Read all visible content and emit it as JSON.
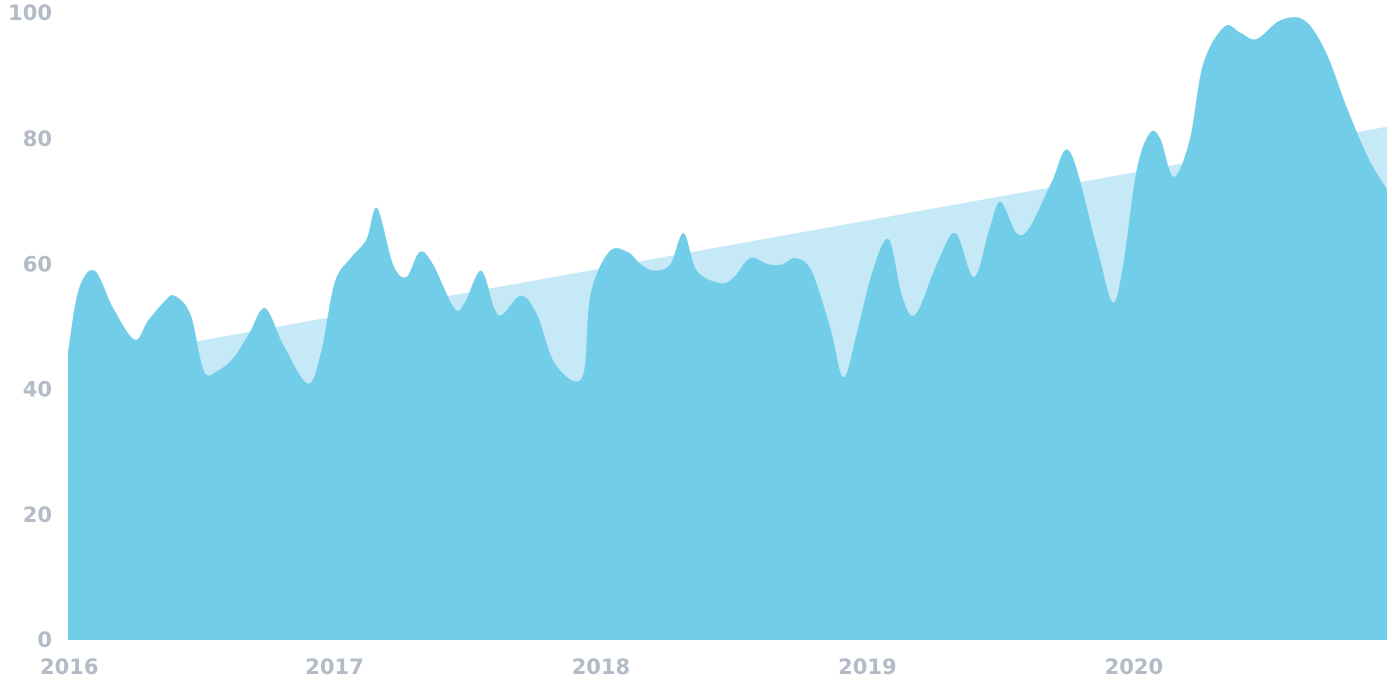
{
  "chart_data": {
    "type": "area",
    "title": "",
    "xlabel": "",
    "ylabel": "",
    "xlim": [
      2016,
      2020.95
    ],
    "ylim": [
      0,
      100
    ],
    "xticks": [
      {
        "value": 2016,
        "label": "2016"
      },
      {
        "value": 2017,
        "label": "2017"
      },
      {
        "value": 2018,
        "label": "2018"
      },
      {
        "value": 2019,
        "label": "2019"
      },
      {
        "value": 2020,
        "label": "2020"
      }
    ],
    "yticks": [
      {
        "value": 0,
        "label": "0"
      },
      {
        "value": 20,
        "label": "20"
      },
      {
        "value": 40,
        "label": "40"
      },
      {
        "value": 60,
        "label": "60"
      },
      {
        "value": 80,
        "label": "80"
      },
      {
        "value": 100,
        "label": "100"
      }
    ],
    "grid": false,
    "legend": "none",
    "colors": {
      "series": "#72cde8",
      "trend": "#c5e9f6",
      "tick_text": "#b3bcc6",
      "background": "#ffffff"
    },
    "series": [
      {
        "points": [
          [
            2016.0,
            46
          ],
          [
            2016.04,
            56
          ],
          [
            2016.1,
            59
          ],
          [
            2016.17,
            53
          ],
          [
            2016.25,
            48
          ],
          [
            2016.3,
            51
          ],
          [
            2016.36,
            54
          ],
          [
            2016.4,
            55
          ],
          [
            2016.46,
            52
          ],
          [
            2016.51,
            43
          ],
          [
            2016.56,
            43
          ],
          [
            2016.62,
            45
          ],
          [
            2016.68,
            49
          ],
          [
            2016.74,
            53
          ],
          [
            2016.81,
            47
          ],
          [
            2016.9,
            41
          ],
          [
            2016.95,
            46
          ],
          [
            2017.0,
            57
          ],
          [
            2017.06,
            61
          ],
          [
            2017.12,
            64
          ],
          [
            2017.16,
            69
          ],
          [
            2017.22,
            60
          ],
          [
            2017.27,
            58
          ],
          [
            2017.32,
            62
          ],
          [
            2017.37,
            60
          ],
          [
            2017.45,
            53
          ],
          [
            2017.49,
            54
          ],
          [
            2017.55,
            59
          ],
          [
            2017.6,
            53
          ],
          [
            2017.63,
            52
          ],
          [
            2017.7,
            55
          ],
          [
            2017.76,
            52
          ],
          [
            2017.83,
            44
          ],
          [
            2017.93,
            42
          ],
          [
            2017.96,
            55
          ],
          [
            2018.03,
            62
          ],
          [
            2018.1,
            62
          ],
          [
            2018.15,
            60
          ],
          [
            2018.2,
            59
          ],
          [
            2018.26,
            60
          ],
          [
            2018.31,
            65
          ],
          [
            2018.36,
            59
          ],
          [
            2018.45,
            57
          ],
          [
            2018.5,
            58
          ],
          [
            2018.56,
            61
          ],
          [
            2018.63,
            60
          ],
          [
            2018.68,
            60
          ],
          [
            2018.73,
            61
          ],
          [
            2018.79,
            59
          ],
          [
            2018.86,
            50
          ],
          [
            2018.91,
            42
          ],
          [
            2018.96,
            49
          ],
          [
            2019.02,
            59
          ],
          [
            2019.08,
            64
          ],
          [
            2019.13,
            55
          ],
          [
            2019.18,
            52
          ],
          [
            2019.26,
            60
          ],
          [
            2019.33,
            65
          ],
          [
            2019.4,
            58
          ],
          [
            2019.46,
            66
          ],
          [
            2019.5,
            70
          ],
          [
            2019.56,
            65
          ],
          [
            2019.61,
            66
          ],
          [
            2019.69,
            73
          ],
          [
            2019.76,
            78
          ],
          [
            2019.86,
            63
          ],
          [
            2019.92,
            54
          ],
          [
            2019.96,
            60
          ],
          [
            2020.01,
            75
          ],
          [
            2020.06,
            81
          ],
          [
            2020.1,
            80
          ],
          [
            2020.15,
            74
          ],
          [
            2020.21,
            80
          ],
          [
            2020.26,
            92
          ],
          [
            2020.34,
            98
          ],
          [
            2020.4,
            97
          ],
          [
            2020.46,
            96
          ],
          [
            2020.55,
            99
          ],
          [
            2020.64,
            99
          ],
          [
            2020.72,
            94
          ],
          [
            2020.8,
            85
          ],
          [
            2020.88,
            77
          ],
          [
            2020.95,
            72
          ]
        ]
      },
      {
        "points": [
          [
            2016.0,
            44
          ],
          [
            2020.95,
            82
          ]
        ]
      }
    ]
  }
}
